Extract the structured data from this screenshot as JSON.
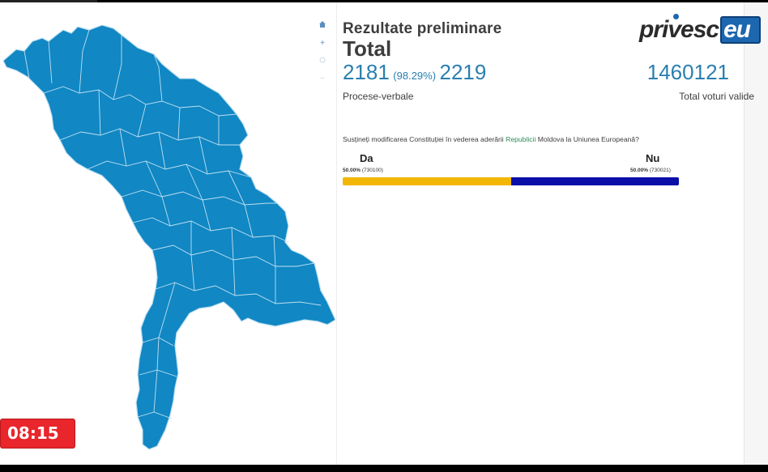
{
  "header": {
    "subtitle": "Rezultate preliminare",
    "title": "Total"
  },
  "counts": {
    "processed": "2181",
    "percent": "(98.29%)",
    "total": "2219",
    "label": "Procese-verbale"
  },
  "valid_votes": {
    "value": "1460121",
    "label": "Total voturi valide"
  },
  "question": {
    "before": "Susțineți modificarea Constituției în vederea aderării ",
    "highlight": "Republicii",
    "after": " Moldova la Uniunea Europeană?"
  },
  "options": {
    "yes": {
      "label": "Da",
      "percent_text": "50.00%",
      "votes_text": "(730100)",
      "share": 0.5,
      "color": "#f2b705"
    },
    "no": {
      "label": "Nu",
      "percent_text": "50.00%",
      "votes_text": "(730021)",
      "share": 0.5,
      "color": "#0a0fa8"
    }
  },
  "map": {
    "fill_color": "#1187c4",
    "border_color": "#bfe0f1"
  },
  "zoom_controls": {
    "home_icon": "home-icon",
    "zoom_in": "+",
    "zoom_out": "−"
  },
  "timer": {
    "text": "08:15"
  },
  "logo": {
    "text": "privesc",
    "suffix": "eu"
  }
}
